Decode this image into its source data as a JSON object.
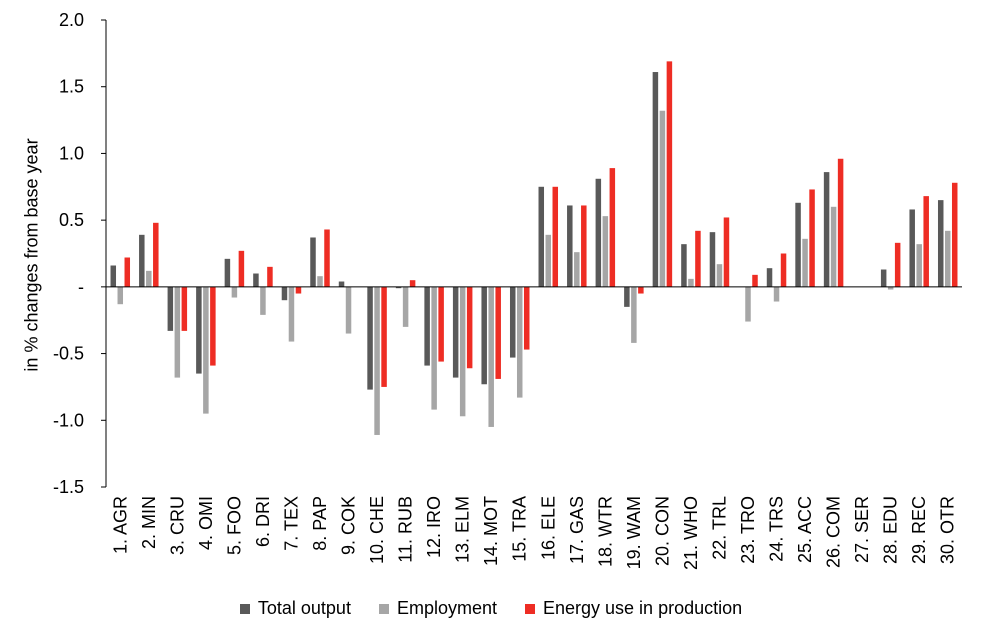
{
  "chart_data": {
    "type": "bar",
    "ylabel": "in % changes from base year",
    "xlabel": "",
    "ylim": [
      -1.5,
      2.0
    ],
    "yticks": [
      {
        "value": 2.0,
        "label": "2.0"
      },
      {
        "value": 1.5,
        "label": "1.5"
      },
      {
        "value": 1.0,
        "label": "1.0"
      },
      {
        "value": 0.5,
        "label": "0.5"
      },
      {
        "value": 0,
        "label": "-"
      },
      {
        "value": -0.5,
        "label": "-0.5"
      },
      {
        "value": -1.0,
        "label": "-1.0"
      },
      {
        "value": -1.5,
        "label": "-1.5"
      }
    ],
    "categories": [
      "1. AGR",
      "2. MIN",
      "3. CRU",
      "4. OMI",
      "5. FOO",
      "6. DRI",
      "7. TEX",
      "8. PAP",
      "9. COK",
      "10. CHE",
      "11. RUB",
      "12. IRO",
      "13. ELM",
      "14. MOT",
      "15. TRA",
      "16. ELE",
      "17. GAS",
      "18. WTR",
      "19. WAM",
      "20. CON",
      "21. WHO",
      "22. TRL",
      "23. TRO",
      "24. TRS",
      "25. ACC",
      "26. COM",
      "27. SER",
      "28. EDU",
      "29. REC",
      "30. OTR"
    ],
    "series": [
      {
        "name": "Total output",
        "color": "#595959",
        "values": [
          0.16,
          0.39,
          -0.33,
          -0.65,
          0.21,
          0.1,
          -0.1,
          0.37,
          0.04,
          -0.77,
          -0.01,
          -0.59,
          -0.68,
          -0.73,
          -0.53,
          0.75,
          0.61,
          0.81,
          -0.15,
          1.61,
          0.32,
          0.41,
          0.0,
          0.14,
          0.63,
          0.86,
          0.0,
          0.13,
          0.58,
          0.65
        ]
      },
      {
        "name": "Employment",
        "color": "#a6a6a6",
        "values": [
          -0.13,
          0.12,
          -0.68,
          -0.95,
          -0.08,
          -0.21,
          -0.41,
          0.08,
          -0.35,
          -1.11,
          -0.3,
          -0.92,
          -0.97,
          -1.05,
          -0.83,
          0.39,
          0.26,
          0.53,
          -0.42,
          1.32,
          0.06,
          0.17,
          -0.26,
          -0.11,
          0.36,
          0.6,
          0.0,
          -0.02,
          0.32,
          0.42
        ]
      },
      {
        "name": "Energy use in production",
        "color": "#ee2d24",
        "values": [
          0.22,
          0.48,
          -0.33,
          -0.59,
          0.27,
          0.15,
          -0.05,
          0.43,
          0.0,
          -0.75,
          0.05,
          -0.56,
          -0.61,
          -0.69,
          -0.47,
          0.75,
          0.61,
          0.89,
          -0.05,
          1.69,
          0.42,
          0.52,
          0.09,
          0.25,
          0.73,
          0.96,
          0.0,
          0.33,
          0.68,
          0.78
        ]
      }
    ],
    "grid": false,
    "legend": "bottom"
  }
}
